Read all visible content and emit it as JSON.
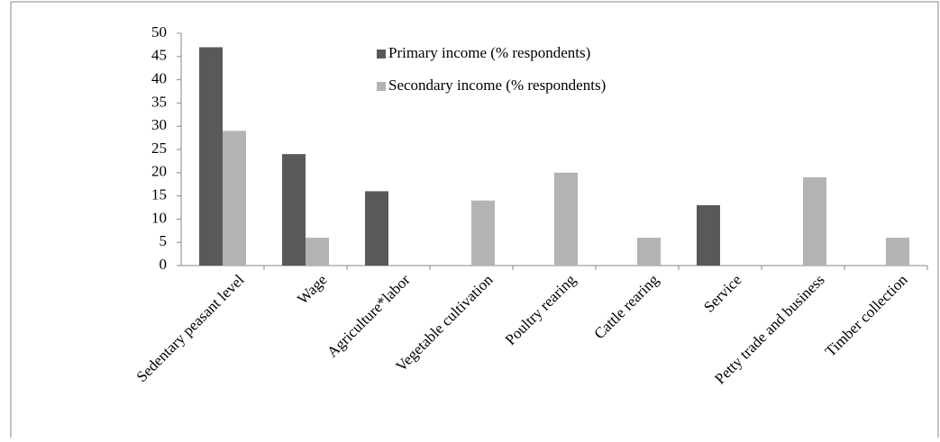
{
  "chart_data": {
    "type": "bar",
    "categories": [
      "Sedentary peasant level",
      "Wage",
      "Agriculture*labor",
      "Vegetable cultivation",
      "Poultry rearing",
      "Cattle rearing",
      "Service",
      "Petty trade and business",
      "Timber collection"
    ],
    "series": [
      {
        "name": "Primary income (% respondents)",
        "color": "#595959",
        "values": [
          47,
          24,
          16,
          0,
          0,
          0,
          13,
          0,
          0
        ]
      },
      {
        "name": "Secondary  income (% respondents)",
        "color": "#b3b3b3",
        "values": [
          29,
          6,
          0,
          14,
          20,
          6,
          0,
          19,
          6
        ]
      }
    ],
    "ylim": [
      0,
      50
    ],
    "yticks": [
      0,
      5,
      10,
      15,
      20,
      25,
      30,
      35,
      40,
      45,
      50
    ]
  }
}
